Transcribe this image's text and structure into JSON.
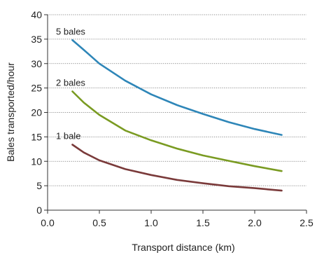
{
  "chart_data": {
    "type": "line",
    "title": "",
    "xlabel": "Transport distance (km)",
    "ylabel": "Bales transported/hour",
    "xlim": [
      0,
      2.5
    ],
    "ylim": [
      0,
      40
    ],
    "x_ticks": [
      0,
      0.5,
      1,
      1.5,
      2,
      2.5
    ],
    "x_tick_labels": [
      "0.0",
      "0.5",
      "1.0",
      "1.5",
      "2.0",
      "2.5"
    ],
    "y_ticks": [
      0,
      5,
      10,
      15,
      20,
      25,
      30,
      35,
      40
    ],
    "y_tick_labels": [
      "0",
      "5",
      "10",
      "15",
      "20",
      "25",
      "30",
      "35",
      "40"
    ],
    "grid": "horizontal dotted",
    "legend": "inline labels near line starts",
    "series": [
      {
        "name": "5 bales",
        "color": "#2e86b8",
        "x": [
          0.24,
          0.35,
          0.5,
          0.75,
          1.0,
          1.25,
          1.5,
          1.75,
          2.0,
          2.26
        ],
        "values": [
          34.8,
          32.8,
          30.0,
          26.5,
          23.7,
          21.5,
          19.7,
          18.0,
          16.6,
          15.4
        ]
      },
      {
        "name": "2 bales",
        "color": "#7a9b22",
        "x": [
          0.24,
          0.35,
          0.5,
          0.75,
          1.0,
          1.25,
          1.5,
          1.75,
          2.0,
          2.26
        ],
        "values": [
          24.3,
          22.0,
          19.5,
          16.3,
          14.3,
          12.6,
          11.2,
          10.1,
          9.0,
          8.0
        ]
      },
      {
        "name": "1 bale",
        "color": "#7a3a3a",
        "x": [
          0.24,
          0.35,
          0.5,
          0.75,
          1.0,
          1.25,
          1.5,
          1.75,
          2.0,
          2.26
        ],
        "values": [
          13.4,
          11.8,
          10.2,
          8.4,
          7.2,
          6.2,
          5.5,
          4.9,
          4.5,
          4.0
        ]
      }
    ]
  }
}
